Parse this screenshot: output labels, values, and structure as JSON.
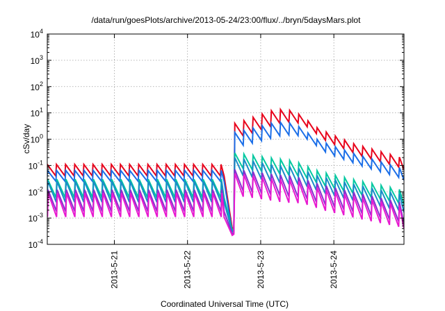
{
  "chart_data": {
    "type": "line",
    "title": "/data/run/goesPlots/archive/2013-05-24/23:00/flux/../bryn/5daysMars.plot",
    "xlabel": "Coordinated Universal Time (UTC)",
    "ylabel": "cSv/day",
    "yscale": "log",
    "ylim": [
      0.0001,
      10000
    ],
    "xlim": [
      "2013-05-20T02:00",
      "2013-05-24T23:00"
    ],
    "y_ticks": [
      {
        "base": "10",
        "exp": "-4",
        "value": 0.0001
      },
      {
        "base": "10",
        "exp": "-3",
        "value": 0.001
      },
      {
        "base": "10",
        "exp": "-2",
        "value": 0.01
      },
      {
        "base": "10",
        "exp": "-1",
        "value": 0.1
      },
      {
        "base": "10",
        "exp": "0",
        "value": 1
      },
      {
        "base": "10",
        "exp": "1",
        "value": 10
      },
      {
        "base": "10",
        "exp": "2",
        "value": 100
      },
      {
        "base": "10",
        "exp": "3",
        "value": 1000
      },
      {
        "base": "10",
        "exp": "4",
        "value": 10000
      }
    ],
    "x_ticks": [
      {
        "label": "2013-5-21",
        "value": "2013-05-21T00:00"
      },
      {
        "label": "2013-5-22",
        "value": "2013-05-22T00:00"
      },
      {
        "label": "2013-5-23",
        "value": "2013-05-23T00:00"
      },
      {
        "label": "2013-5-24",
        "value": "2013-05-24T00:00"
      }
    ],
    "grid": true,
    "legend": "none",
    "sawtooth_period_hours": 3,
    "event_onset": "2013-05-22T15:30",
    "series": [
      {
        "color": "#e8001a",
        "quiet_peak": 0.11,
        "quiet_trough": 0.04,
        "dip_min": 0.0004,
        "event_peaks": [
          [
            "2013-05-22T16:00",
            4.0
          ],
          [
            "2013-05-23T05:00",
            14
          ],
          [
            "2013-05-23T11:00",
            12
          ],
          [
            "2013-05-23T19:00",
            2.5
          ],
          [
            "2013-05-24T06:00",
            0.7
          ],
          [
            "2013-05-24T22:00",
            0.2
          ]
        ],
        "event_trough_ratio": 0.33
      },
      {
        "color": "#1a6ee8",
        "quiet_peak": 0.065,
        "quiet_trough": 0.025,
        "dip_min": 0.0003,
        "event_peaks": [
          [
            "2013-05-22T16:00",
            1.8
          ],
          [
            "2013-05-23T05:00",
            4.5
          ],
          [
            "2013-05-23T11:00",
            4.0
          ],
          [
            "2013-05-23T19:00",
            0.9
          ],
          [
            "2013-05-24T06:00",
            0.3
          ],
          [
            "2013-05-24T22:00",
            0.08
          ]
        ],
        "event_trough_ratio": 0.33
      },
      {
        "color": "#00c8a0",
        "quiet_peak": 0.03,
        "quiet_trough": 0.006,
        "dip_min": 0.00035,
        "event_peaks": [
          [
            "2013-05-22T16:00",
            0.3
          ],
          [
            "2013-05-23T05:00",
            0.18
          ],
          [
            "2013-05-23T11:00",
            0.15
          ],
          [
            "2013-05-23T19:00",
            0.06
          ],
          [
            "2013-05-24T06:00",
            0.03
          ],
          [
            "2013-05-24T22:00",
            0.012
          ]
        ],
        "event_trough_ratio": 0.25
      },
      {
        "color": "#1a8cc8",
        "quiet_peak": 0.025,
        "quiet_trough": 0.004,
        "dip_min": 0.0003,
        "event_peaks": [
          [
            "2013-05-22T16:00",
            0.2
          ],
          [
            "2013-05-23T05:00",
            0.1
          ],
          [
            "2013-05-23T11:00",
            0.09
          ],
          [
            "2013-05-23T19:00",
            0.04
          ],
          [
            "2013-05-24T06:00",
            0.02
          ],
          [
            "2013-05-24T22:00",
            0.008
          ]
        ],
        "event_trough_ratio": 0.2
      },
      {
        "color": "#8a2fd0",
        "quiet_peak": 0.012,
        "quiet_trough": 0.0018,
        "dip_min": 0.00025,
        "event_peaks": [
          [
            "2013-05-22T16:00",
            0.07
          ],
          [
            "2013-05-23T05:00",
            0.045
          ],
          [
            "2013-05-23T11:00",
            0.04
          ],
          [
            "2013-05-23T19:00",
            0.02
          ],
          [
            "2013-05-24T06:00",
            0.01
          ],
          [
            "2013-05-24T22:00",
            0.004
          ]
        ],
        "event_trough_ratio": 0.15
      },
      {
        "color": "#e81ad0",
        "quiet_peak": 0.009,
        "quiet_trough": 0.0011,
        "dip_min": 0.00022,
        "event_peaks": [
          [
            "2013-05-22T16:00",
            0.05
          ],
          [
            "2013-05-23T05:00",
            0.03
          ],
          [
            "2013-05-23T11:00",
            0.028
          ],
          [
            "2013-05-23T19:00",
            0.014
          ],
          [
            "2013-05-24T06:00",
            0.007
          ],
          [
            "2013-05-24T22:00",
            0.003
          ]
        ],
        "event_trough_ratio": 0.13
      }
    ]
  }
}
